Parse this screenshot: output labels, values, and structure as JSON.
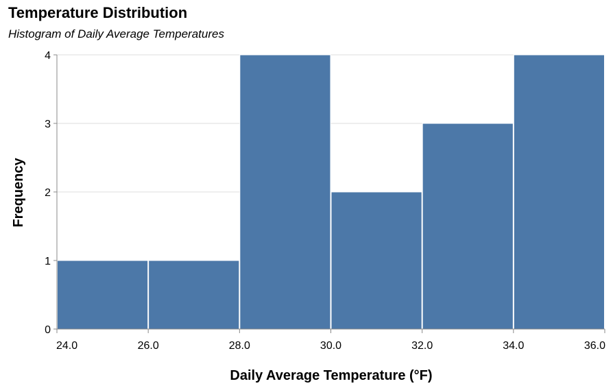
{
  "title": "Temperature Distribution",
  "subtitle": "Histogram of Daily Average Temperatures",
  "chart_data": {
    "type": "bar",
    "subtype": "histogram",
    "title": "Temperature Distribution",
    "subtitle": "Histogram of Daily Average Temperatures",
    "xlabel": "Daily Average Temperature (°F)",
    "ylabel": "Frequency",
    "xlim": [
      24,
      36
    ],
    "ylim": [
      0,
      4
    ],
    "x_ticks": [
      "24.0",
      "26.0",
      "28.0",
      "30.0",
      "32.0",
      "34.0",
      "36.0"
    ],
    "y_ticks": [
      "0",
      "1",
      "2",
      "3",
      "4"
    ],
    "bins": [
      {
        "start": 24,
        "end": 26,
        "count": 1
      },
      {
        "start": 26,
        "end": 28,
        "count": 1
      },
      {
        "start": 28,
        "end": 30,
        "count": 4
      },
      {
        "start": 30,
        "end": 32,
        "count": 2
      },
      {
        "start": 32,
        "end": 34,
        "count": 3
      },
      {
        "start": 34,
        "end": 36,
        "count": 4
      }
    ],
    "grid": true,
    "bar_color": "#4c78a8",
    "grid_color": "#dddddd"
  }
}
